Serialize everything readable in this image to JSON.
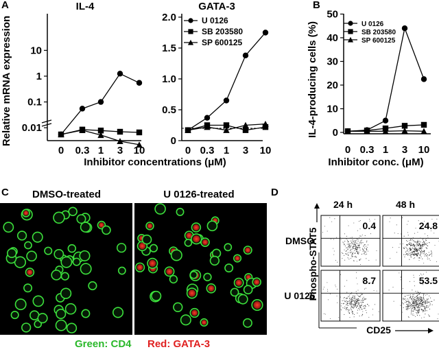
{
  "panel_letters": {
    "A": "A",
    "B": "B",
    "C": "C",
    "D": "D"
  },
  "chart_data": [
    {
      "type": "line",
      "title": "IL-4",
      "ylabel": "Relative mRNA expression",
      "xlabel": "Inhibitor concentrations (μM)",
      "y_scale": "log",
      "ylim": [
        0.003,
        10
      ],
      "y_ticks": [
        "10",
        "1",
        "0.1",
        "0.01"
      ],
      "categories": [
        "0",
        "0.3",
        "1",
        "3",
        "10"
      ],
      "series": [
        {
          "name": "U 0126",
          "marker": "circle",
          "values": [
            0.0055,
            0.055,
            0.1,
            1.25,
            0.55
          ]
        },
        {
          "name": "SB 203580",
          "marker": "square",
          "values": [
            0.0055,
            0.0085,
            0.0078,
            0.007,
            0.0066
          ]
        },
        {
          "name": "SP 600125",
          "marker": "triangle",
          "values": [
            0.0055,
            0.008,
            0.0052,
            0.003,
            0.0022
          ]
        }
      ]
    },
    {
      "type": "line",
      "title": "GATA-3",
      "xlabel": "Inhibitor concentrations (μM)",
      "ylim": [
        0,
        2.0
      ],
      "y_ticks": [
        "2.0",
        "1.5",
        "1.0",
        "0.5",
        "0"
      ],
      "categories": [
        "0",
        "0.3",
        "1",
        "3",
        "10"
      ],
      "reference_line": 0.2,
      "legend": "top-left",
      "series": [
        {
          "name": "U 0126",
          "marker": "circle",
          "values": [
            0.17,
            0.37,
            0.65,
            1.38,
            1.75
          ]
        },
        {
          "name": "SB 203580",
          "marker": "square",
          "values": [
            0.17,
            0.25,
            0.25,
            0.17,
            0.22
          ]
        },
        {
          "name": "SP 600125",
          "marker": "triangle",
          "values": [
            0.17,
            0.22,
            0.17,
            0.25,
            0.27
          ]
        }
      ]
    },
    {
      "type": "line",
      "ylabel": "IL-4-producing cells (%)",
      "xlabel": "Inhibitor conc. (μM)",
      "ylim": [
        0,
        50
      ],
      "y_ticks": [
        "50",
        "40",
        "30",
        "20",
        "10",
        "0"
      ],
      "categories": [
        "0",
        "0.3",
        "1",
        "3",
        "10"
      ],
      "legend": "top-left",
      "series": [
        {
          "name": "U 0126",
          "marker": "circle",
          "values": [
            0.5,
            1.0,
            5.0,
            44.0,
            22.5
          ]
        },
        {
          "name": "SB 203580",
          "marker": "square",
          "values": [
            0.5,
            0.8,
            1.7,
            2.8,
            3.2
          ]
        },
        {
          "name": "SP 600125",
          "marker": "triangle",
          "values": [
            0.5,
            0.5,
            0.5,
            0.7,
            0.5
          ]
        }
      ]
    }
  ],
  "microscopy": {
    "left_title": "DMSO-treated",
    "right_title": "U 0126-treated",
    "legend_green": "Green: CD4",
    "legend_red": "Red: GATA-3"
  },
  "flow": {
    "col_labels": [
      "24 h",
      "48 h"
    ],
    "row_labels": [
      "DMSO",
      "U 0126"
    ],
    "quadrant_values": [
      "0.4",
      "24.8",
      "8.7",
      "53.5"
    ],
    "y_axis": "Phospho-STAT5",
    "x_axis": "CD25"
  }
}
